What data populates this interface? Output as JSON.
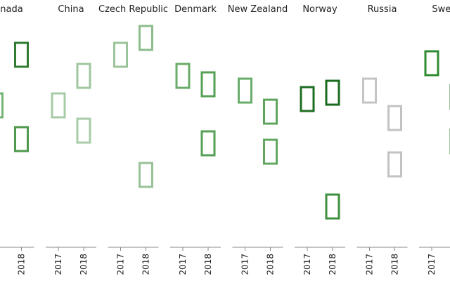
{
  "chart_data": {
    "type": "scatter",
    "description_of_marks": "each point is drawn as an open rectangle glyph; color shade indicates intensity",
    "years": [
      "2017",
      "2018"
    ],
    "y_domain": [
      0,
      100
    ],
    "facets": [
      {
        "country": "Canada",
        "title": "anada",
        "points": [
          {
            "year": "2017",
            "y": 60,
            "color": "#75b374"
          },
          {
            "year": "2018",
            "y": 84,
            "color": "#2e7d32"
          },
          {
            "year": "2018",
            "y": 44,
            "color": "#4f9a4e"
          }
        ]
      },
      {
        "country": "China",
        "title": "China",
        "points": [
          {
            "year": "2017",
            "y": 60,
            "color": "#a6cba5"
          },
          {
            "year": "2018",
            "y": 74,
            "color": "#9fc69e"
          },
          {
            "year": "2018",
            "y": 48,
            "color": "#a8cca7"
          }
        ]
      },
      {
        "country": "Czech Republic",
        "title": "Czech Republic",
        "points": [
          {
            "year": "2017",
            "y": 84,
            "color": "#9bc49a"
          },
          {
            "year": "2018",
            "y": 92,
            "color": "#8dbc8c"
          },
          {
            "year": "2018",
            "y": 27,
            "color": "#99c298"
          }
        ]
      },
      {
        "country": "Denmark",
        "title": "Denmark",
        "points": [
          {
            "year": "2017",
            "y": 74,
            "color": "#6aac69"
          },
          {
            "year": "2018",
            "y": 70,
            "color": "#55a054"
          },
          {
            "year": "2018",
            "y": 42,
            "color": "#55a054"
          }
        ]
      },
      {
        "country": "New Zealand",
        "title": "New Zealand",
        "points": [
          {
            "year": "2017",
            "y": 67,
            "color": "#6aac69"
          },
          {
            "year": "2018",
            "y": 57,
            "color": "#5ea55d"
          },
          {
            "year": "2018",
            "y": 38,
            "color": "#61a760"
          }
        ]
      },
      {
        "country": "Norway",
        "title": "Norway",
        "points": [
          {
            "year": "2017",
            "y": 63,
            "color": "#1e6e21"
          },
          {
            "year": "2018",
            "y": 66,
            "color": "#1a6a1d"
          },
          {
            "year": "2018",
            "y": 12,
            "color": "#3f8f3f"
          }
        ]
      },
      {
        "country": "Russia",
        "title": "Russia",
        "points": [
          {
            "year": "2017",
            "y": 67,
            "color": "#c4c4c4"
          },
          {
            "year": "2018",
            "y": 54,
            "color": "#c2c2c2"
          },
          {
            "year": "2018",
            "y": 32,
            "color": "#c2c2c2"
          }
        ]
      },
      {
        "country": "Sweden",
        "title": "Swed",
        "points": [
          {
            "year": "2017",
            "y": 80,
            "color": "#2e8b30"
          },
          {
            "year": "2018",
            "y": 64,
            "color": "#2e7d32"
          },
          {
            "year": "2018",
            "y": 43,
            "color": "#3a8a3b"
          }
        ]
      }
    ]
  }
}
